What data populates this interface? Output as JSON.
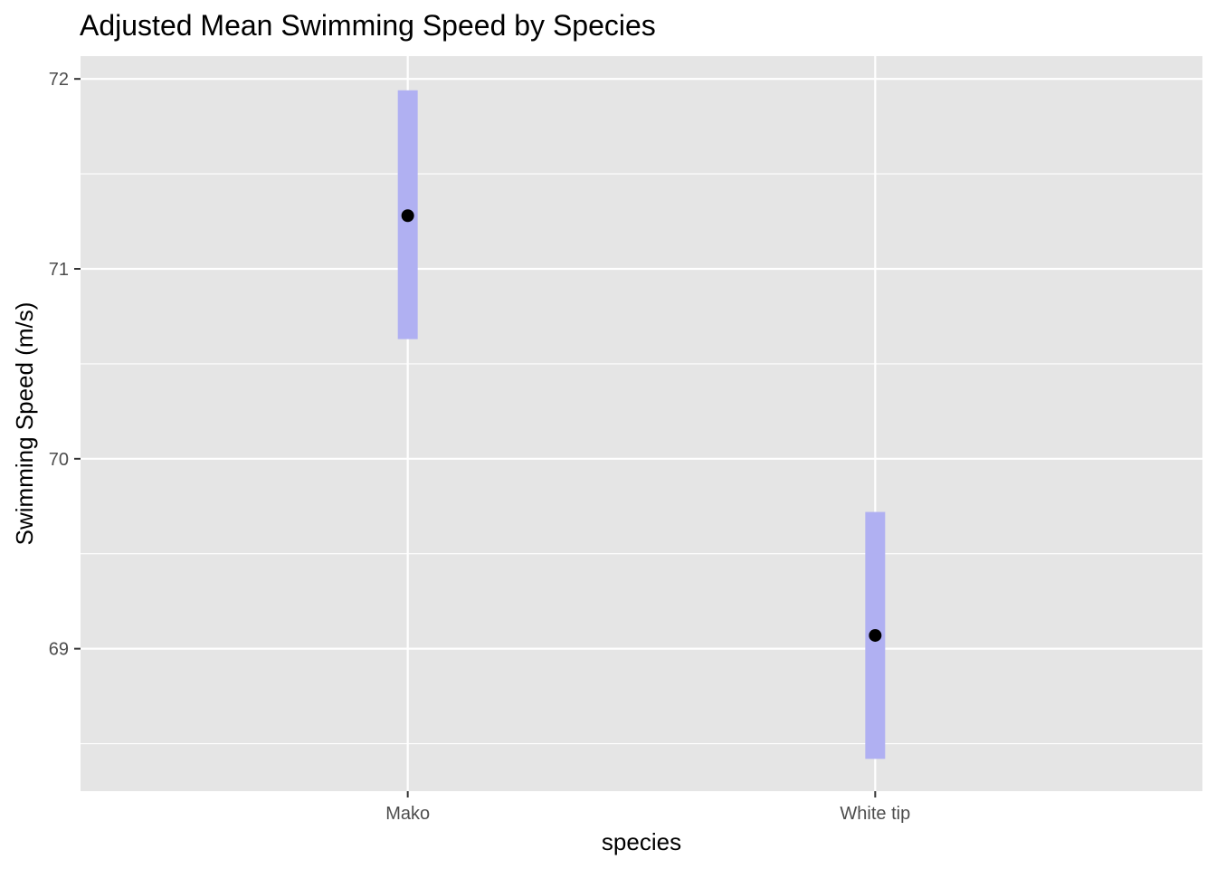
{
  "chart_data": {
    "type": "errorbar-point",
    "title": "Adjusted Mean Swimming Speed by Species",
    "xlabel": "species",
    "ylabel": "Swimming Speed (m/s)",
    "categories": [
      "Mako",
      "White tip"
    ],
    "estimates": [
      71.28,
      69.07
    ],
    "lower": [
      70.63,
      68.42
    ],
    "upper": [
      71.94,
      69.72
    ],
    "ylim": [
      68.25,
      72.12
    ],
    "y_ticks": [
      69,
      70,
      71,
      72
    ],
    "y_tick_labels": [
      "69",
      "70",
      "71",
      "72"
    ],
    "grid": true,
    "legend": "none",
    "colors": {
      "panel_background": "#e5e5e5",
      "grid_line": "#ffffff",
      "interval_bar": "#b0b0f2",
      "point": "#000000",
      "tick_mark": "#333333"
    }
  }
}
